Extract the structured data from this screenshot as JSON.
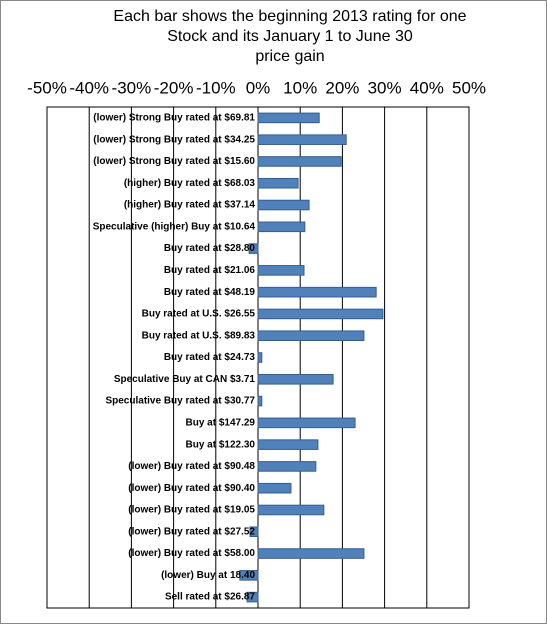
{
  "chart_data": {
    "type": "bar",
    "orientation": "horizontal",
    "title": [
      "Each bar shows the beginning 2013 rating for one",
      "Stock and its January 1 to June 30",
      "price gain"
    ],
    "categories": [
      "(lower) Strong Buy rated at $69.81",
      "(lower) Strong Buy rated at $34.25",
      "(lower) Strong Buy rated at $15.60",
      "(higher) Buy rated at $68.03",
      "(higher) Buy rated at $37.14",
      "Speculative (higher) Buy at $10.64",
      "Buy rated at $28.80",
      "Buy rated at $21.06",
      "Buy rated at $48.19",
      "Buy rated at U.S. $26.55",
      "Buy rated at U.S. $89.83",
      "Buy rated at $24.73",
      "Speculative Buy at CAN $3.71",
      "Speculative Buy rated at $30.77",
      "Buy at $147.29",
      "Buy at $122.30",
      "(lower) Buy rated at $90.48",
      "(lower) Buy rated at $90.40",
      "(lower) Buy rated at $19.05",
      "(lower) Buy rated at $27.52",
      "(lower) Buy rated at $58.00",
      "(lower) Buy at 18.40",
      "Sell rated at $26.87"
    ],
    "values": [
      14.5,
      20.9,
      19.7,
      9.5,
      12.1,
      11.1,
      -2.1,
      10.9,
      28.0,
      29.6,
      25.1,
      0.9,
      17.8,
      0.9,
      23.0,
      14.2,
      13.7,
      7.8,
      15.6,
      -1.9,
      25.1,
      -4.3,
      -2.6
    ],
    "color": "#4f81bd",
    "xlim": [
      -50,
      50
    ],
    "xticks": [
      {
        "value": -50,
        "label": "-50%"
      },
      {
        "value": -40,
        "label": "-40%"
      },
      {
        "value": -30,
        "label": "-30%"
      },
      {
        "value": -20,
        "label": "-20%"
      },
      {
        "value": -10,
        "label": "-10%"
      },
      {
        "value": 0,
        "label": "0%"
      },
      {
        "value": 10,
        "label": "10%"
      },
      {
        "value": 20,
        "label": "20%"
      },
      {
        "value": 30,
        "label": "30%"
      },
      {
        "value": 40,
        "label": "40%"
      },
      {
        "value": 50,
        "label": "50%"
      }
    ],
    "grid": true
  }
}
